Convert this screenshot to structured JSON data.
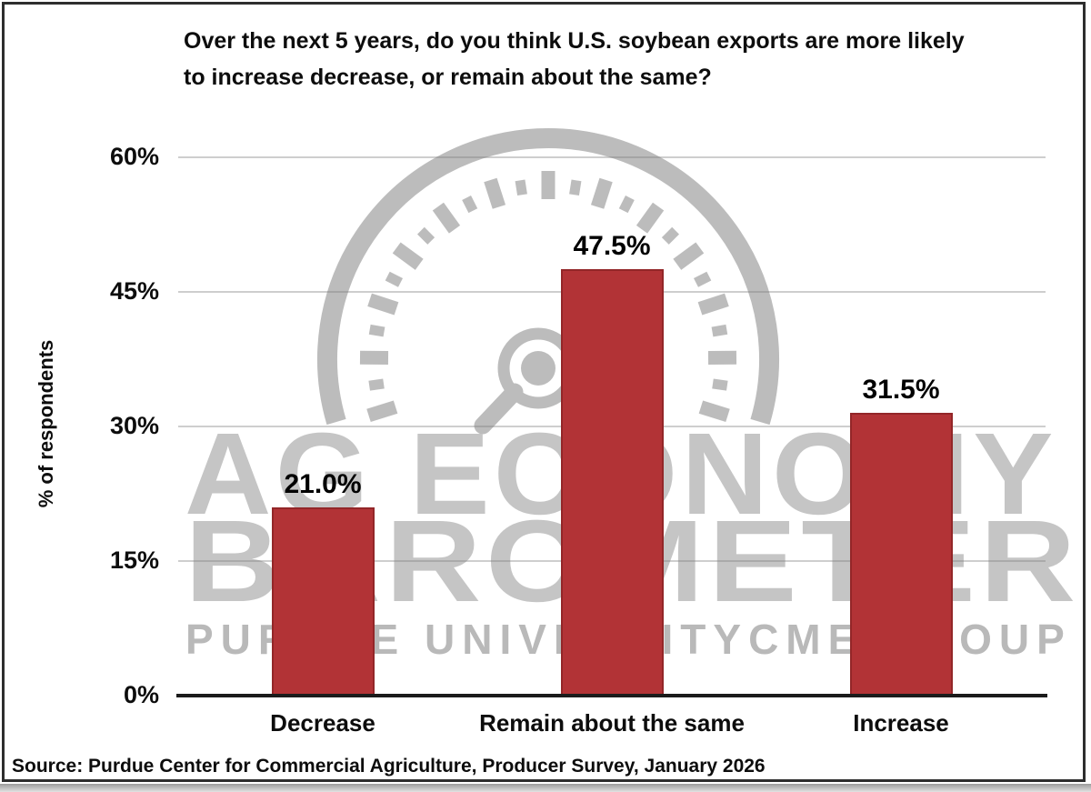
{
  "title": {
    "line1": "Over the next 5 years, do you think U.S. soybean exports are more likely",
    "line2": "to increase decrease, or remain about the same?"
  },
  "chart_data": {
    "type": "bar",
    "title": "Over the next 5 years, do you think U.S. soybean exports are more likely to increase decrease, or remain about the same?",
    "categories": [
      "Decrease",
      "Remain about the same",
      "Increase"
    ],
    "values": [
      21.0,
      47.5,
      31.5
    ],
    "value_labels": [
      "21.0%",
      "47.5%",
      "31.5%"
    ],
    "xlabel": "",
    "ylabel": "% of respondents",
    "ylim": [
      0,
      60
    ],
    "yticks": [
      0,
      15,
      30,
      45,
      60
    ],
    "ytick_labels": [
      "0%",
      "15%",
      "30%",
      "45%",
      "60%"
    ],
    "grid": "horizontal",
    "legend": false,
    "bar_color": "#b23336"
  },
  "watermark": {
    "line1": "AG ECONOMY",
    "line2": "BAROMETER",
    "line3_left": "PURDUE UNIVERSITY",
    "line3_right": "CME GROUP"
  },
  "source": "Source: Purdue Center for Commercial Agriculture, Producer Survey, January 2026",
  "colors": {
    "bar": "#b23336",
    "watermark_text": "#c5c5c5",
    "gauge": "#bcbcbc",
    "axis": "#1b1b1b",
    "gridline": "#7d7d7d",
    "border": "#2e2e2e"
  }
}
